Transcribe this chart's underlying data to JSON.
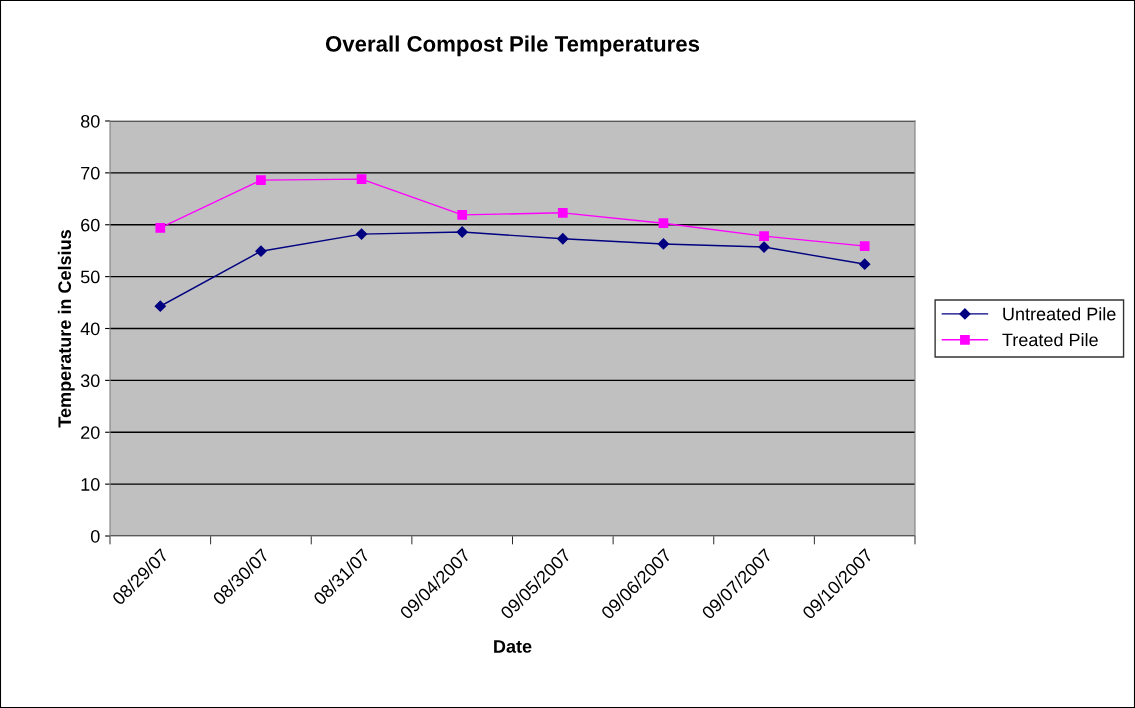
{
  "chart_data": {
    "type": "line",
    "title": "Overall Compost Pile Temperatures",
    "xlabel": "Date",
    "ylabel": "Temperature in Celsius",
    "categories": [
      "08/29/07",
      "08/30/07",
      "08/31/07",
      "09/04/2007",
      "09/05/2007",
      "09/06/2007",
      "09/07/2007",
      "09/10/2007"
    ],
    "series": [
      {
        "name": "Untreated Pile",
        "color": "#000080",
        "marker": "diamond",
        "values": [
          44.3,
          54.9,
          58.2,
          58.6,
          57.3,
          56.3,
          55.7,
          52.4
        ]
      },
      {
        "name": "Treated Pile",
        "color": "#ff00ff",
        "marker": "square",
        "values": [
          59.4,
          68.6,
          68.8,
          61.9,
          62.3,
          60.3,
          57.8,
          55.9
        ]
      }
    ],
    "ylim": [
      0,
      80
    ],
    "yticks": [
      0,
      10,
      20,
      30,
      40,
      50,
      60,
      70,
      80
    ],
    "grid": "y",
    "legend": "right",
    "line_style": "solid"
  }
}
